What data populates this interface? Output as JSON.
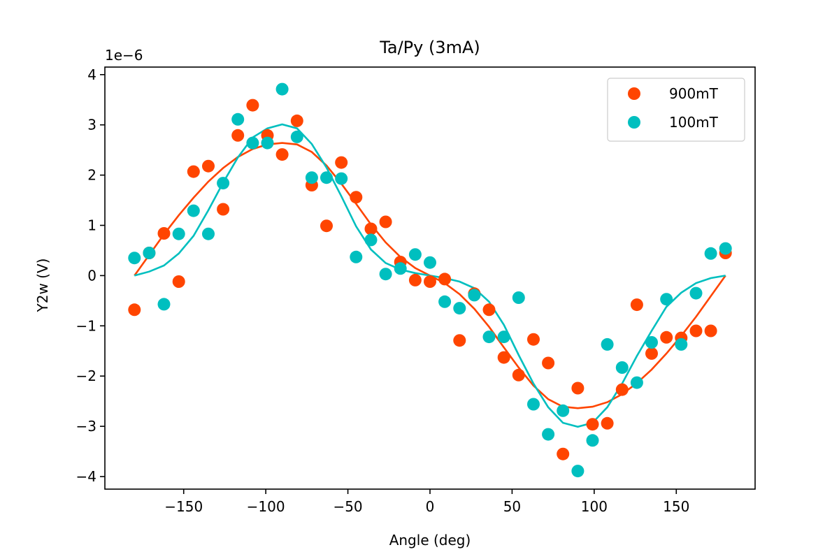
{
  "chart_data": {
    "type": "scatter",
    "title": "Ta/Py (3mA)",
    "xlabel": "Angle (deg)",
    "ylabel": "Y2w (V)",
    "y_offset_label": "1e−6",
    "y_scale": 1e-06,
    "xlim": [
      -198,
      198
    ],
    "ylim": [
      -4.25,
      4.15
    ],
    "x_ticks": [
      -150,
      -100,
      -50,
      0,
      50,
      100,
      150
    ],
    "x_tick_labels": [
      "−150",
      "−100",
      "−50",
      "0",
      "50",
      "100",
      "150"
    ],
    "y_ticks": [
      -4,
      -3,
      -2,
      -1,
      0,
      1,
      2,
      3,
      4
    ],
    "y_tick_labels": [
      "−4",
      "−3",
      "−2",
      "−1",
      "0",
      "1",
      "2",
      "3",
      "4"
    ],
    "grid": false,
    "legend_position": "top-right",
    "series": [
      {
        "name": "900mT",
        "color": "#ff4500",
        "x": [
          -180,
          -171,
          -162,
          -153,
          -144,
          -135,
          -126,
          -117,
          -108,
          -99,
          -90,
          -81,
          -72,
          -63,
          -54,
          -45,
          -36,
          -27,
          -18,
          -9,
          0,
          9,
          18,
          27,
          36,
          45,
          54,
          63,
          72,
          81,
          90,
          99,
          108,
          117,
          126,
          135,
          144,
          153,
          162,
          171,
          180
        ],
        "y": [
          -0.68,
          0.45,
          0.84,
          -0.12,
          2.07,
          2.18,
          1.32,
          2.79,
          3.39,
          2.79,
          2.41,
          3.08,
          1.8,
          0.99,
          2.25,
          1.56,
          0.93,
          1.07,
          0.27,
          -0.09,
          -0.12,
          -0.07,
          -1.29,
          -0.36,
          -0.68,
          -1.63,
          -1.98,
          -1.27,
          -1.74,
          -3.55,
          -2.24,
          -2.96,
          -2.94,
          -2.27,
          -0.58,
          -1.55,
          -1.23,
          -1.24,
          -1.1,
          -1.1,
          0.45
        ],
        "fit": {
          "x": [
            -180,
            -171,
            -162,
            -153,
            -144,
            -135,
            -126,
            -117,
            -108,
            -99,
            -90,
            -81,
            -72,
            -63,
            -54,
            -45,
            -36,
            -27,
            -18,
            -9,
            0,
            9,
            18,
            27,
            36,
            45,
            54,
            63,
            72,
            81,
            90,
            99,
            108,
            117,
            126,
            135,
            144,
            153,
            162,
            171,
            180
          ],
          "y": [
            0,
            0.41,
            0.82,
            1.2,
            1.55,
            1.87,
            2.14,
            2.36,
            2.52,
            2.61,
            2.64,
            2.61,
            2.46,
            2.19,
            1.83,
            1.43,
            1.02,
            0.66,
            0.37,
            0.15,
            0,
            -0.15,
            -0.37,
            -0.66,
            -1.02,
            -1.43,
            -1.83,
            -2.19,
            -2.46,
            -2.61,
            -2.64,
            -2.61,
            -2.52,
            -2.36,
            -2.14,
            -1.87,
            -1.55,
            -1.2,
            -0.82,
            -0.41,
            0
          ]
        }
      },
      {
        "name": "100mT",
        "color": "#00bfbf",
        "x": [
          -180,
          -171,
          -162,
          -153,
          -144,
          -135,
          -126,
          -117,
          -108,
          -99,
          -90,
          -81,
          -72,
          -63,
          -54,
          -45,
          -36,
          -27,
          -18,
          -9,
          0,
          9,
          18,
          27,
          36,
          45,
          54,
          63,
          72,
          81,
          90,
          99,
          108,
          117,
          126,
          135,
          144,
          153,
          162,
          171,
          180
        ],
        "y": [
          0.35,
          0.45,
          -0.57,
          0.83,
          1.29,
          0.83,
          1.84,
          3.11,
          2.64,
          2.64,
          3.71,
          2.76,
          1.95,
          1.95,
          1.93,
          0.37,
          0.71,
          0.03,
          0.14,
          0.42,
          0.26,
          -0.52,
          -0.65,
          -0.39,
          -1.22,
          -1.22,
          -0.44,
          -2.56,
          -3.16,
          -2.69,
          -3.89,
          -3.28,
          -1.37,
          -1.83,
          -2.13,
          -1.33,
          -0.47,
          -1.37,
          -0.35,
          0.44,
          0.54
        ],
        "fit": {
          "x": [
            -180,
            -171,
            -162,
            -153,
            -144,
            -135,
            -126,
            -117,
            -108,
            -99,
            -90,
            -81,
            -72,
            -63,
            -54,
            -45,
            -36,
            -27,
            -18,
            -9,
            0,
            9,
            18,
            27,
            36,
            45,
            54,
            63,
            72,
            81,
            90,
            99,
            108,
            117,
            126,
            135,
            144,
            153,
            162,
            171,
            180
          ],
          "y": [
            0,
            0.08,
            0.2,
            0.44,
            0.79,
            1.3,
            1.85,
            2.35,
            2.75,
            2.93,
            3.01,
            2.93,
            2.62,
            2.15,
            1.58,
            0.98,
            0.52,
            0.25,
            0.12,
            0.05,
            0,
            -0.05,
            -0.12,
            -0.25,
            -0.52,
            -0.98,
            -1.58,
            -2.15,
            -2.62,
            -2.93,
            -3.01,
            -2.93,
            -2.62,
            -2.15,
            -1.6,
            -1.1,
            -0.62,
            -0.34,
            -0.15,
            -0.05,
            0
          ]
        }
      }
    ]
  }
}
